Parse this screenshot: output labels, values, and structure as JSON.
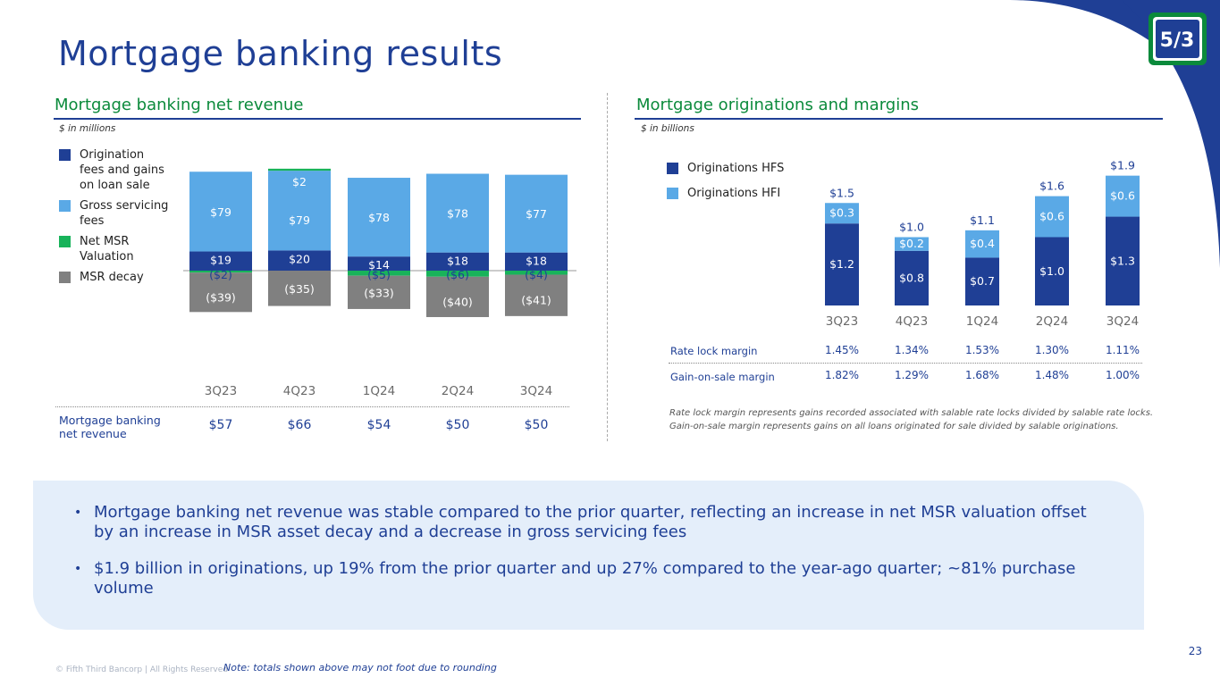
{
  "title": "Mortgage banking results",
  "logo_text": "5/3",
  "colors": {
    "navy": "#1f3f95",
    "light_blue": "#5aa9e6",
    "green": "#18b35a",
    "gray": "#808080",
    "section_green": "#0b8a3b"
  },
  "left": {
    "section_title": "Mortgage banking net revenue",
    "units": "$ in millions",
    "legend": [
      {
        "label": "Origination fees and gains on loan sale",
        "color": "#1f3f95"
      },
      {
        "label": "Gross servicing fees",
        "color": "#5aa9e6"
      },
      {
        "label": "Net MSR Valuation",
        "color": "#18b35a"
      },
      {
        "label": "MSR decay",
        "color": "#808080"
      }
    ],
    "net_revenue_label": "Mortgage banking net revenue",
    "net_revenue": [
      "$57",
      "$66",
      "$54",
      "$50",
      "$50"
    ]
  },
  "right": {
    "section_title": "Mortgage originations and margins",
    "units": "$ in billions",
    "legend": [
      {
        "label": "Originations HFS",
        "color": "#1f3f95"
      },
      {
        "label": "Originations HFI",
        "color": "#5aa9e6"
      }
    ],
    "rate_lock_label": "Rate lock margin",
    "rate_lock": [
      "1.45%",
      "1.34%",
      "1.53%",
      "1.30%",
      "1.11%"
    ],
    "gain_on_sale_label": "Gain-on-sale margin",
    "gain_on_sale": [
      "1.82%",
      "1.29%",
      "1.68%",
      "1.48%",
      "1.00%"
    ],
    "footnote_1": "Rate lock margin represents gains recorded associated with salable rate locks divided by salable rate locks.",
    "footnote_2": "Gain-on-sale margin represents gains on all loans originated for sale divided by salable originations."
  },
  "chart_data": [
    {
      "type": "bar",
      "stacked": true,
      "title": "Mortgage banking net revenue",
      "units": "$ in millions",
      "categories": [
        "3Q23",
        "4Q23",
        "1Q24",
        "2Q24",
        "3Q24"
      ],
      "series": [
        {
          "name": "Origination fees and gains on loan sale",
          "values": [
            19,
            20,
            14,
            18,
            18
          ],
          "labels": [
            "$19",
            "$20",
            "$14",
            "$18",
            "$18"
          ]
        },
        {
          "name": "Gross servicing fees",
          "values": [
            79,
            79,
            78,
            78,
            77
          ],
          "labels": [
            "$79",
            "$79",
            "$78",
            "$78",
            "$77"
          ]
        },
        {
          "name": "Net MSR Valuation",
          "values": [
            -2,
            2,
            -5,
            -6,
            -4
          ],
          "labels": [
            "($2)",
            "$2",
            "($5)",
            "($6)",
            "($4)"
          ]
        },
        {
          "name": "MSR decay",
          "values": [
            -39,
            -35,
            -33,
            -40,
            -41
          ],
          "labels": [
            "($39)",
            "($35)",
            "($33)",
            "($40)",
            "($41)"
          ]
        }
      ]
    },
    {
      "type": "bar",
      "stacked": true,
      "title": "Mortgage originations and margins",
      "units": "$ in billions",
      "categories": [
        "3Q23",
        "4Q23",
        "1Q24",
        "2Q24",
        "3Q24"
      ],
      "series": [
        {
          "name": "Originations HFS",
          "values": [
            1.2,
            0.8,
            0.7,
            1.0,
            1.3
          ],
          "labels": [
            "$1.2",
            "$0.8",
            "$0.7",
            "$1.0",
            "$1.3"
          ]
        },
        {
          "name": "Originations HFI",
          "values": [
            0.3,
            0.2,
            0.4,
            0.6,
            0.6
          ],
          "labels": [
            "$0.3",
            "$0.2",
            "$0.4",
            "$0.6",
            "$0.6"
          ]
        }
      ],
      "totals": [
        "$1.5",
        "$1.0",
        "$1.1",
        "$1.6",
        "$1.9"
      ]
    }
  ],
  "bullets": [
    "Mortgage banking net revenue was stable compared to the prior quarter, reflecting an increase in net MSR valuation offset by an increase in MSR asset decay and a decrease in gross servicing fees",
    "$1.9 billion in originations, up 19% from the prior quarter and up 27% compared to the year-ago quarter; ~81% purchase volume"
  ],
  "bullet_char": "•",
  "page_number": "23",
  "copyright": "© Fifth Third Bancorp | All Rights Reserved",
  "note": "Note: totals shown above may not foot due to rounding"
}
